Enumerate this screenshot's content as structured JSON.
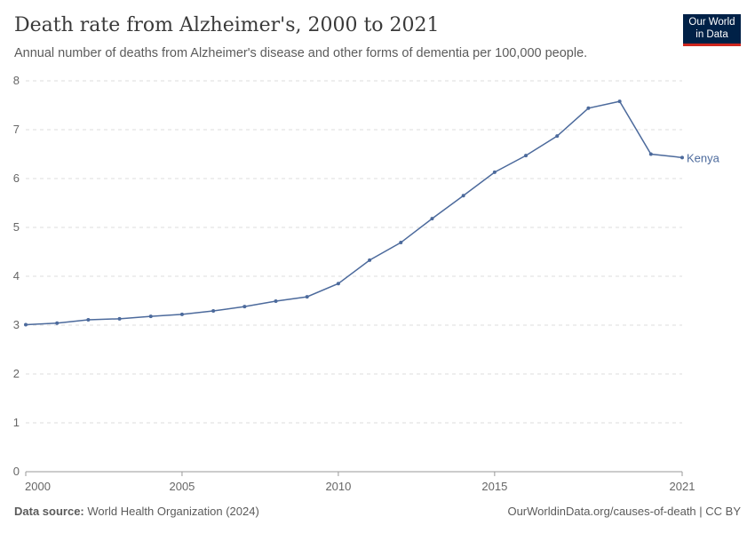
{
  "title": "Death rate from Alzheimer's, 2000 to 2021",
  "subtitle": "Annual number of deaths from Alzheimer's disease and other forms of dementia per 100,000 people.",
  "logo": {
    "line1": "Our World",
    "line2": "in Data"
  },
  "footer": {
    "source_label": "Data source:",
    "source": "World Health Organization (2024)",
    "url": "OurWorldinData.org/causes-of-death | CC BY"
  },
  "chart_data": {
    "type": "line",
    "title": "Death rate from Alzheimer's, 2000 to 2021",
    "xlabel": "",
    "ylabel": "",
    "xlim": [
      2000,
      2021
    ],
    "ylim": [
      0,
      8
    ],
    "x_ticks": [
      2000,
      2005,
      2010,
      2015,
      2021
    ],
    "y_ticks": [
      0,
      1,
      2,
      3,
      4,
      5,
      6,
      7,
      8
    ],
    "grid": "horizontal dashed",
    "legend": "line-end label",
    "series": [
      {
        "name": "Kenya",
        "color": "#4c6a9c",
        "x": [
          2000,
          2001,
          2002,
          2003,
          2004,
          2005,
          2006,
          2007,
          2008,
          2009,
          2010,
          2011,
          2012,
          2013,
          2014,
          2015,
          2016,
          2017,
          2018,
          2019,
          2020,
          2021
        ],
        "values": [
          3.01,
          3.04,
          3.11,
          3.13,
          3.18,
          3.22,
          3.29,
          3.38,
          3.49,
          3.58,
          3.85,
          4.33,
          4.69,
          5.18,
          5.65,
          6.13,
          6.47,
          6.87,
          7.44,
          7.58,
          6.5,
          6.43
        ]
      }
    ]
  }
}
